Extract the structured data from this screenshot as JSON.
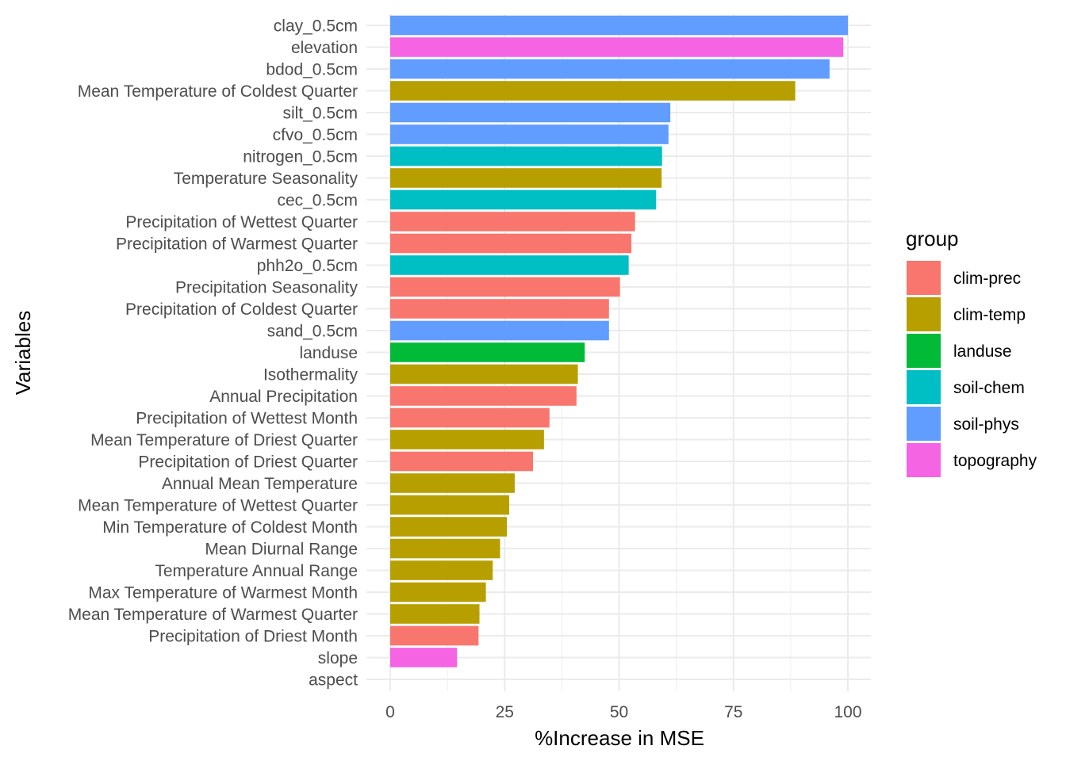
{
  "chart_data": {
    "type": "bar",
    "orientation": "horizontal",
    "xlabel": "%Increase in MSE",
    "ylabel": "Variables",
    "xlim": [
      0,
      105
    ],
    "x_ticks": [
      0,
      25,
      50,
      75,
      100
    ],
    "grid": true,
    "legend": {
      "title": "group",
      "position": "right",
      "entries": [
        {
          "name": "clim-prec",
          "color": "#F8766D"
        },
        {
          "name": "clim-temp",
          "color": "#B79F00"
        },
        {
          "name": "landuse",
          "color": "#00BA38"
        },
        {
          "name": "soil-chem",
          "color": "#00BFC4"
        },
        {
          "name": "soil-phys",
          "color": "#619CFF"
        },
        {
          "name": "topography",
          "color": "#F564E3"
        }
      ]
    },
    "bars": [
      {
        "category": "clay_0.5cm",
        "value": 100.0,
        "group": "soil-phys"
      },
      {
        "category": "elevation",
        "value": 99.0,
        "group": "topography"
      },
      {
        "category": "bdod_0.5cm",
        "value": 96.0,
        "group": "soil-phys"
      },
      {
        "category": "Mean Temperature of Coldest Quarter",
        "value": 88.5,
        "group": "clim-temp"
      },
      {
        "category": "silt_0.5cm",
        "value": 61.2,
        "group": "soil-phys"
      },
      {
        "category": "cfvo_0.5cm",
        "value": 60.8,
        "group": "soil-phys"
      },
      {
        "category": "nitrogen_0.5cm",
        "value": 59.4,
        "group": "soil-chem"
      },
      {
        "category": "Temperature Seasonality",
        "value": 59.3,
        "group": "clim-temp"
      },
      {
        "category": "cec_0.5cm",
        "value": 58.1,
        "group": "soil-chem"
      },
      {
        "category": "Precipitation of Wettest Quarter",
        "value": 53.5,
        "group": "clim-prec"
      },
      {
        "category": "Precipitation of Warmest Quarter",
        "value": 52.7,
        "group": "clim-prec"
      },
      {
        "category": "phh2o_0.5cm",
        "value": 52.1,
        "group": "soil-chem"
      },
      {
        "category": "Precipitation Seasonality",
        "value": 50.2,
        "group": "clim-prec"
      },
      {
        "category": "Precipitation of Coldest Quarter",
        "value": 47.8,
        "group": "clim-prec"
      },
      {
        "category": "sand_0.5cm",
        "value": 47.8,
        "group": "soil-phys"
      },
      {
        "category": "landuse",
        "value": 42.5,
        "group": "landuse"
      },
      {
        "category": "Isothermality",
        "value": 41.0,
        "group": "clim-temp"
      },
      {
        "category": "Annual Precipitation",
        "value": 40.7,
        "group": "clim-prec"
      },
      {
        "category": "Precipitation of Wettest Month",
        "value": 34.8,
        "group": "clim-prec"
      },
      {
        "category": "Mean Temperature of Driest Quarter",
        "value": 33.6,
        "group": "clim-temp"
      },
      {
        "category": "Precipitation of Driest Quarter",
        "value": 31.2,
        "group": "clim-prec"
      },
      {
        "category": "Annual Mean Temperature",
        "value": 27.2,
        "group": "clim-temp"
      },
      {
        "category": "Mean Temperature of Wettest Quarter",
        "value": 26.0,
        "group": "clim-temp"
      },
      {
        "category": "Min Temperature of Coldest Month",
        "value": 25.5,
        "group": "clim-temp"
      },
      {
        "category": "Mean Diurnal Range",
        "value": 24.0,
        "group": "clim-temp"
      },
      {
        "category": "Temperature Annual Range",
        "value": 22.4,
        "group": "clim-temp"
      },
      {
        "category": "Max Temperature of Warmest Month",
        "value": 20.9,
        "group": "clim-temp"
      },
      {
        "category": "Mean Temperature of Warmest Quarter",
        "value": 19.5,
        "group": "clim-temp"
      },
      {
        "category": "Precipitation of Driest Month",
        "value": 19.3,
        "group": "clim-prec"
      },
      {
        "category": "slope",
        "value": 14.6,
        "group": "topography"
      },
      {
        "category": "aspect",
        "value": 0.0,
        "group": "topography"
      }
    ]
  }
}
